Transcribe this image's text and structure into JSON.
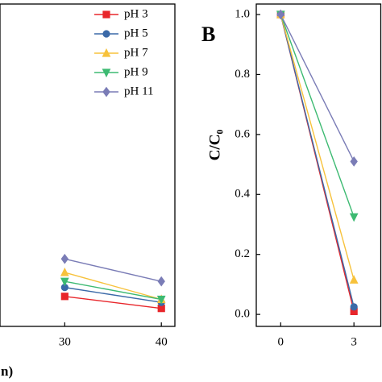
{
  "chart_data": [
    {
      "type": "line",
      "x_label": "n)",
      "xlim": [
        23.3,
        41.4
      ],
      "ylim": [
        -0.04,
        1.035
      ],
      "xticks": [
        30,
        40
      ],
      "legend": "upper right",
      "series": [
        {
          "name": "pH 3",
          "color": "#e8262b",
          "marker": "square",
          "x": [
            30,
            40
          ],
          "values": [
            0.06,
            0.02
          ]
        },
        {
          "name": "pH 5",
          "color": "#3b6aa8",
          "marker": "circle",
          "x": [
            30,
            40
          ],
          "values": [
            0.09,
            0.04
          ]
        },
        {
          "name": "pH 7",
          "color": "#f7c23c",
          "marker": "triangle-up",
          "x": [
            30,
            40
          ],
          "values": [
            0.14,
            0.05
          ]
        },
        {
          "name": "pH 9",
          "color": "#3dba72",
          "marker": "triangle-down",
          "x": [
            30,
            40
          ],
          "values": [
            0.11,
            0.05
          ]
        },
        {
          "name": "pH 11",
          "color": "#7a7cb6",
          "marker": "diamond",
          "x": [
            30,
            40
          ],
          "values": [
            0.185,
            0.11
          ]
        }
      ]
    },
    {
      "type": "line",
      "panel_label": "B",
      "y_label": "C/C₀",
      "xlim": [
        -1,
        4.1
      ],
      "ylim": [
        -0.04,
        1.035
      ],
      "xticks": [
        0,
        3
      ],
      "yticks": [
        {
          "value": 0,
          "label": "0.0"
        },
        0.2,
        0.4,
        0.6,
        0.8,
        {
          "value": 1,
          "label": "1.0"
        }
      ],
      "series": [
        {
          "color": "#e8262b",
          "marker": "square",
          "x": [
            0,
            3
          ],
          "values": [
            1,
            0.01
          ]
        },
        {
          "color": "#3b6aa8",
          "marker": "circle",
          "x": [
            0,
            3
          ],
          "values": [
            1,
            0.025
          ]
        },
        {
          "color": "#f7c23c",
          "marker": "triangle-up",
          "x": [
            0,
            3
          ],
          "values": [
            1,
            0.115
          ]
        },
        {
          "color": "#3dba72",
          "marker": "triangle-down",
          "x": [
            0,
            3
          ],
          "values": [
            1,
            0.325
          ]
        },
        {
          "color": "#7a7cb6",
          "marker": "diamond",
          "x": [
            0,
            3
          ],
          "values": [
            1,
            0.51
          ]
        }
      ]
    }
  ]
}
